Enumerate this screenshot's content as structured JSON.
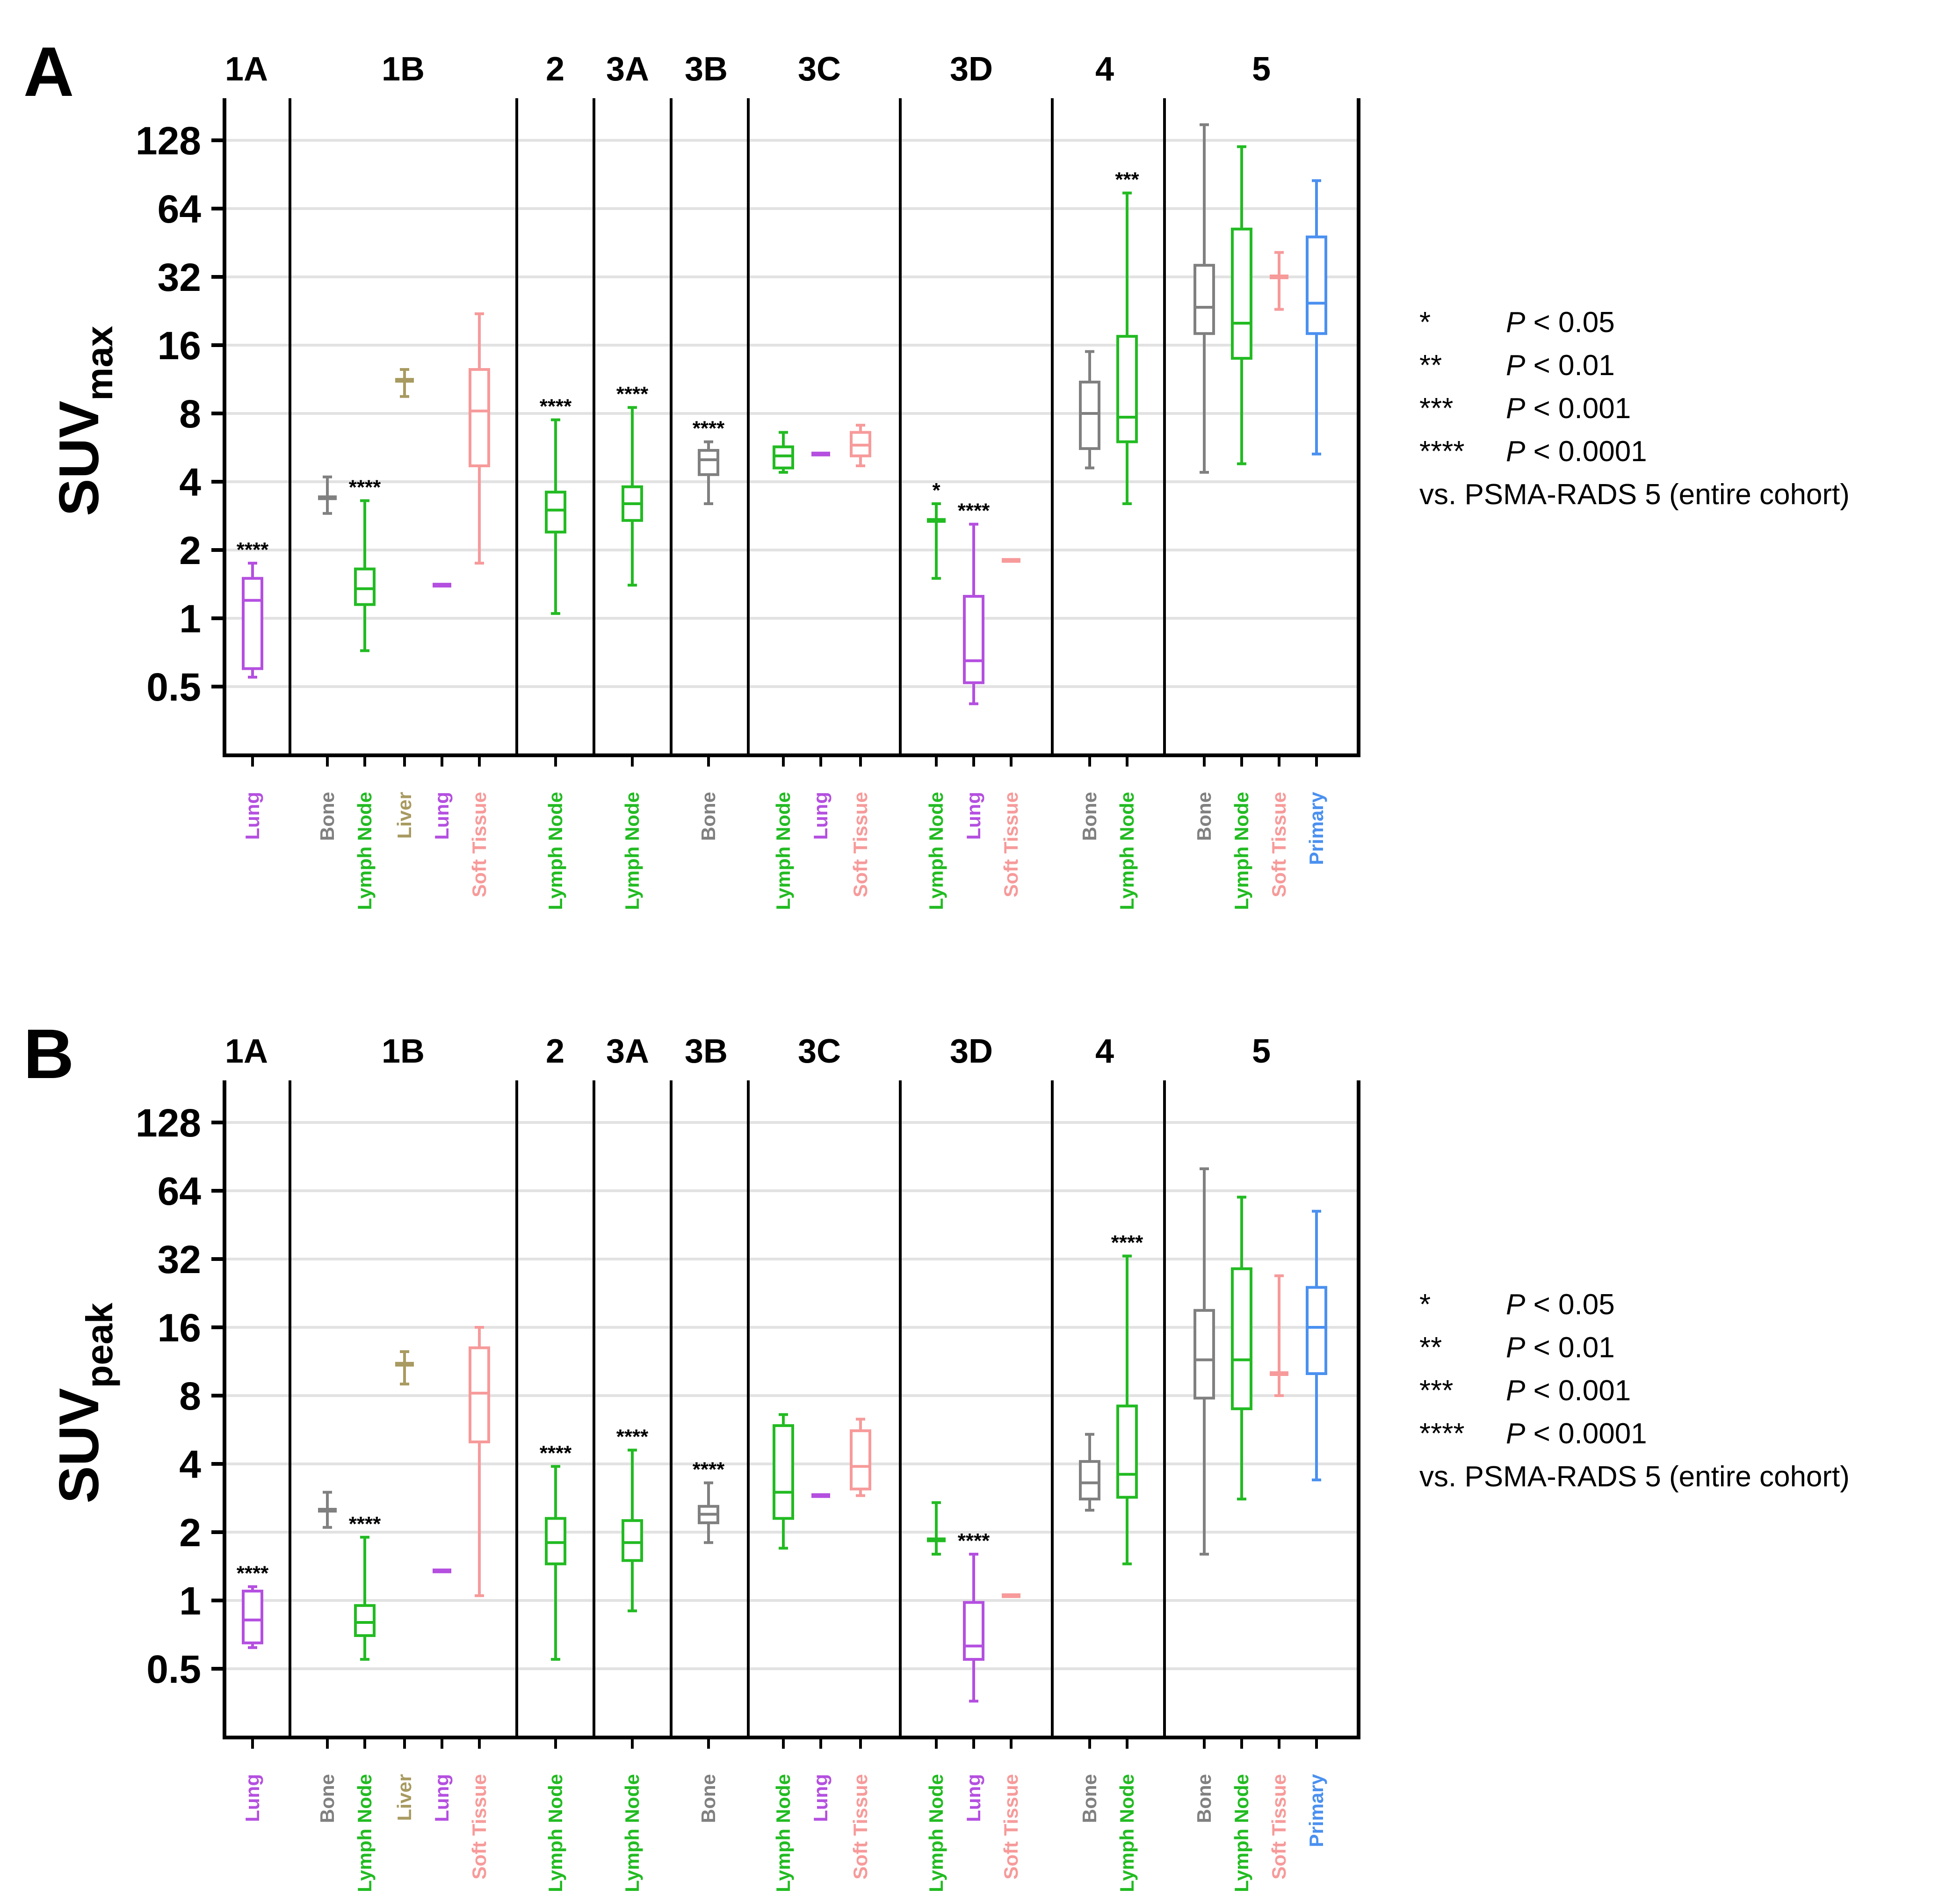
{
  "colors": {
    "Bone": "#808080",
    "Lymph Node": "#22bb22",
    "Liver": "#a89a60",
    "Lung": "#b44fe0",
    "Soft Tissue": "#f79a9a",
    "Primary": "#4a90f0"
  },
  "chart_data": [
    {
      "type": "box",
      "panel": "A",
      "title": "",
      "ylabel": "SUV",
      "ylabel_sub": "max",
      "yscale": "log2",
      "ylim": [
        0.25,
        256
      ],
      "yticks": [
        0.5,
        1,
        2,
        4,
        8,
        16,
        32,
        64,
        128
      ],
      "ytick_labels": [
        "0.5",
        "1",
        "2",
        "4",
        "8",
        "16",
        "32",
        "64",
        "128"
      ],
      "groups": [
        {
          "label": "1A",
          "boxes": [
            {
              "category": "Lung",
              "min": 0.55,
              "q1": 0.6,
              "median": 1.2,
              "q3": 1.5,
              "max": 1.75,
              "sig": "****"
            }
          ]
        },
        {
          "label": "1B",
          "boxes": [
            {
              "category": "Bone",
              "min": 2.9,
              "q1": 3.4,
              "median": 3.4,
              "q3": 3.4,
              "max": 4.2,
              "sig": ""
            },
            {
              "category": "Lymph Node",
              "min": 0.72,
              "q1": 1.15,
              "median": 1.35,
              "q3": 1.65,
              "max": 3.3,
              "sig": "****"
            },
            {
              "category": "Liver",
              "min": 9.5,
              "q1": 11.2,
              "median": 11.2,
              "q3": 11.2,
              "max": 12.5,
              "sig": ""
            },
            {
              "category": "Lung",
              "min": 1.4,
              "q1": 1.4,
              "median": 1.4,
              "q3": 1.4,
              "max": 1.4,
              "sig": ""
            },
            {
              "category": "Soft Tissue",
              "min": 1.75,
              "q1": 4.7,
              "median": 8.2,
              "q3": 12.5,
              "max": 22,
              "sig": ""
            }
          ]
        },
        {
          "label": "2",
          "boxes": [
            {
              "category": "Lymph Node",
              "min": 1.05,
              "q1": 2.4,
              "median": 3.0,
              "q3": 3.6,
              "max": 7.5,
              "sig": "****"
            }
          ]
        },
        {
          "label": "3A",
          "boxes": [
            {
              "category": "Lymph Node",
              "min": 1.4,
              "q1": 2.7,
              "median": 3.2,
              "q3": 3.8,
              "max": 8.5,
              "sig": "****"
            }
          ]
        },
        {
          "label": "3B",
          "boxes": [
            {
              "category": "Bone",
              "min": 3.2,
              "q1": 4.3,
              "median": 5.0,
              "q3": 5.5,
              "max": 6.0,
              "sig": "****"
            }
          ]
        },
        {
          "label": "3C",
          "boxes": [
            {
              "category": "Lymph Node",
              "min": 4.4,
              "q1": 4.6,
              "median": 5.2,
              "q3": 5.7,
              "max": 6.6,
              "sig": ""
            },
            {
              "category": "Lung",
              "min": 5.3,
              "q1": 5.3,
              "median": 5.3,
              "q3": 5.3,
              "max": 5.3,
              "sig": ""
            },
            {
              "category": "Soft Tissue",
              "min": 4.7,
              "q1": 5.2,
              "median": 5.8,
              "q3": 6.6,
              "max": 7.1,
              "sig": ""
            }
          ]
        },
        {
          "label": "3D",
          "boxes": [
            {
              "category": "Lymph Node",
              "min": 1.5,
              "q1": 2.7,
              "median": 2.7,
              "q3": 2.7,
              "max": 3.2,
              "sig": "*"
            },
            {
              "category": "Lung",
              "min": 0.42,
              "q1": 0.52,
              "median": 0.65,
              "q3": 1.25,
              "max": 2.6,
              "sig": "****"
            },
            {
              "category": "Soft Tissue",
              "min": 1.8,
              "q1": 1.8,
              "median": 1.8,
              "q3": 1.8,
              "max": 1.8,
              "sig": ""
            }
          ]
        },
        {
          "label": "4",
          "boxes": [
            {
              "category": "Bone",
              "min": 4.6,
              "q1": 5.6,
              "median": 8.0,
              "q3": 11.0,
              "max": 15,
              "sig": ""
            },
            {
              "category": "Lymph Node",
              "min": 3.2,
              "q1": 6.0,
              "median": 7.7,
              "q3": 17.5,
              "max": 75,
              "sig": "***"
            }
          ]
        },
        {
          "label": "5",
          "boxes": [
            {
              "category": "Bone",
              "min": 4.4,
              "q1": 18,
              "median": 23.5,
              "q3": 36,
              "max": 150,
              "sig": ""
            },
            {
              "category": "Lymph Node",
              "min": 4.8,
              "q1": 14,
              "median": 20,
              "q3": 52,
              "max": 120,
              "sig": ""
            },
            {
              "category": "Soft Tissue",
              "min": 23,
              "q1": 32,
              "median": 32,
              "q3": 32,
              "max": 41,
              "sig": ""
            },
            {
              "category": "Primary",
              "min": 5.3,
              "q1": 18,
              "median": 24.5,
              "q3": 48,
              "max": 85,
              "sig": ""
            }
          ]
        }
      ],
      "legend": {
        "rows": [
          {
            "stars": "*",
            "p": "P",
            "text": " < 0.05"
          },
          {
            "stars": "**",
            "p": "P",
            "text": " < 0.01"
          },
          {
            "stars": "***",
            "p": "P",
            "text": " < 0.001"
          },
          {
            "stars": "****",
            "p": "P",
            "text": " < 0.0001"
          }
        ],
        "footer": "vs. PSMA-RADS 5 (entire cohort)"
      }
    },
    {
      "type": "box",
      "panel": "B",
      "title": "",
      "ylabel": "SUV",
      "ylabel_sub": "peak",
      "yscale": "log2",
      "ylim": [
        0.25,
        256
      ],
      "yticks": [
        0.5,
        1,
        2,
        4,
        8,
        16,
        32,
        64,
        128
      ],
      "ytick_labels": [
        "0.5",
        "1",
        "2",
        "4",
        "8",
        "16",
        "32",
        "64",
        "128"
      ],
      "groups": [
        {
          "label": "1A",
          "boxes": [
            {
              "category": "Lung",
              "min": 0.62,
              "q1": 0.65,
              "median": 0.82,
              "q3": 1.1,
              "max": 1.15,
              "sig": "****"
            }
          ]
        },
        {
          "label": "1B",
          "boxes": [
            {
              "category": "Bone",
              "min": 2.1,
              "q1": 2.5,
              "median": 2.5,
              "q3": 2.5,
              "max": 3.0,
              "sig": ""
            },
            {
              "category": "Lymph Node",
              "min": 0.55,
              "q1": 0.7,
              "median": 0.8,
              "q3": 0.95,
              "max": 1.9,
              "sig": "****"
            },
            {
              "category": "Liver",
              "min": 9.0,
              "q1": 11.0,
              "median": 11.0,
              "q3": 11.0,
              "max": 12.5,
              "sig": ""
            },
            {
              "category": "Lung",
              "min": 1.35,
              "q1": 1.35,
              "median": 1.35,
              "q3": 1.35,
              "max": 1.35,
              "sig": ""
            },
            {
              "category": "Soft Tissue",
              "min": 1.05,
              "q1": 5.0,
              "median": 8.2,
              "q3": 13,
              "max": 16,
              "sig": ""
            }
          ]
        },
        {
          "label": "2",
          "boxes": [
            {
              "category": "Lymph Node",
              "min": 0.55,
              "q1": 1.45,
              "median": 1.8,
              "q3": 2.3,
              "max": 3.9,
              "sig": "****"
            }
          ]
        },
        {
          "label": "3A",
          "boxes": [
            {
              "category": "Lymph Node",
              "min": 0.9,
              "q1": 1.5,
              "median": 1.8,
              "q3": 2.25,
              "max": 4.6,
              "sig": "****"
            }
          ]
        },
        {
          "label": "3B",
          "boxes": [
            {
              "category": "Bone",
              "min": 1.8,
              "q1": 2.2,
              "median": 2.4,
              "q3": 2.6,
              "max": 3.3,
              "sig": "****"
            }
          ]
        },
        {
          "label": "3C",
          "boxes": [
            {
              "category": "Lymph Node",
              "min": 1.7,
              "q1": 2.3,
              "median": 3.0,
              "q3": 5.9,
              "max": 6.6,
              "sig": ""
            },
            {
              "category": "Lung",
              "min": 2.9,
              "q1": 2.9,
              "median": 2.9,
              "q3": 2.9,
              "max": 2.9,
              "sig": ""
            },
            {
              "category": "Soft Tissue",
              "min": 2.9,
              "q1": 3.1,
              "median": 3.9,
              "q3": 5.6,
              "max": 6.3,
              "sig": ""
            }
          ]
        },
        {
          "label": "3D",
          "boxes": [
            {
              "category": "Lymph Node",
              "min": 1.6,
              "q1": 1.85,
              "median": 1.85,
              "q3": 1.85,
              "max": 2.7,
              "sig": ""
            },
            {
              "category": "Lung",
              "min": 0.36,
              "q1": 0.55,
              "median": 0.63,
              "q3": 0.98,
              "max": 1.6,
              "sig": "****"
            },
            {
              "category": "Soft Tissue",
              "min": 1.05,
              "q1": 1.05,
              "median": 1.05,
              "q3": 1.05,
              "max": 1.05,
              "sig": ""
            }
          ]
        },
        {
          "label": "4",
          "boxes": [
            {
              "category": "Bone",
              "min": 2.5,
              "q1": 2.8,
              "median": 3.3,
              "q3": 4.1,
              "max": 5.4,
              "sig": ""
            },
            {
              "category": "Lymph Node",
              "min": 1.45,
              "q1": 2.85,
              "median": 3.6,
              "q3": 7.2,
              "max": 33,
              "sig": "****"
            }
          ]
        },
        {
          "label": "5",
          "boxes": [
            {
              "category": "Bone",
              "min": 1.6,
              "q1": 7.8,
              "median": 11.5,
              "q3": 19,
              "max": 80,
              "sig": ""
            },
            {
              "category": "Lymph Node",
              "min": 2.8,
              "q1": 7.0,
              "median": 11.5,
              "q3": 29,
              "max": 60,
              "sig": ""
            },
            {
              "category": "Soft Tissue",
              "min": 8.0,
              "q1": 10.0,
              "median": 10.0,
              "q3": 10.0,
              "max": 27,
              "sig": ""
            },
            {
              "category": "Primary",
              "min": 3.4,
              "q1": 10,
              "median": 16,
              "q3": 24,
              "max": 52,
              "sig": ""
            }
          ]
        }
      ],
      "legend": {
        "rows": [
          {
            "stars": "*",
            "p": "P",
            "text": " < 0.05"
          },
          {
            "stars": "**",
            "p": "P",
            "text": " < 0.01"
          },
          {
            "stars": "***",
            "p": "P",
            "text": " < 0.001"
          },
          {
            "stars": "****",
            "p": "P",
            "text": " < 0.0001"
          }
        ],
        "footer": "vs. PSMA-RADS 5 (entire cohort)"
      }
    }
  ]
}
